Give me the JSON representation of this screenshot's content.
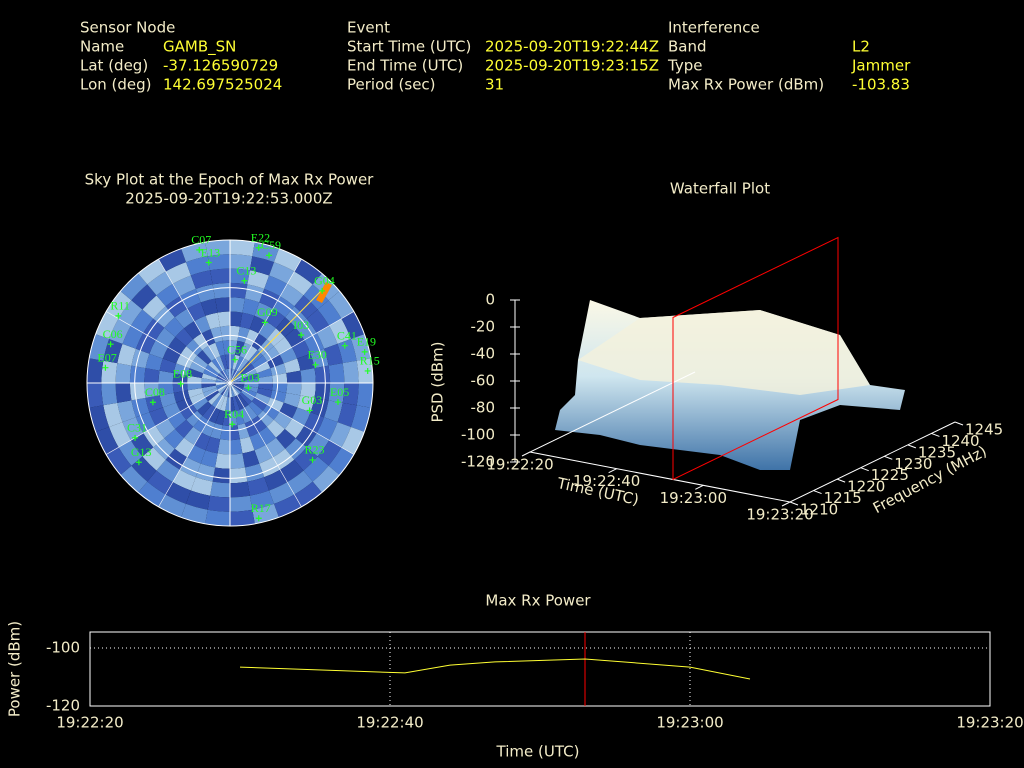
{
  "header": {
    "sections": [
      {
        "title": "Sensor Node",
        "rows": [
          [
            "Name",
            "GAMB_SN"
          ],
          [
            "Lat (deg)",
            "-37.126590729"
          ],
          [
            "Lon (deg)",
            "142.697525024"
          ]
        ]
      },
      {
        "title": "Event",
        "rows": [
          [
            "Start Time (UTC)",
            "2025-09-20T19:22:44Z"
          ],
          [
            "End Time (UTC)",
            "2025-09-20T19:23:15Z"
          ],
          [
            "Period (sec)",
            "31"
          ]
        ]
      },
      {
        "title": "Interference",
        "rows": [
          [
            "Band",
            "L2"
          ],
          [
            "Type",
            "Jammer"
          ],
          [
            "Max Rx Power (dBm)",
            "-103.83"
          ]
        ]
      }
    ]
  },
  "chart_data": [
    {
      "type": "polar-scatter",
      "title": "Sky Plot at the Epoch of Max Rx Power",
      "subtitle": "2025-09-20T19:22:53.000Z",
      "color": "#22ff22",
      "rlim": [
        0,
        90
      ],
      "rticks": [
        0,
        30,
        60
      ],
      "points": [
        {
          "label": "C07",
          "azimuth": 347,
          "elevation": 4
        },
        {
          "label": "E22",
          "azimuth": 12,
          "elevation": 3
        },
        {
          "label": "C59",
          "azimuth": 17,
          "elevation": 6
        },
        {
          "label": "E13",
          "azimuth": 350,
          "elevation": 13
        },
        {
          "label": "G04",
          "azimuth": 45,
          "elevation": 8
        },
        {
          "label": "R11",
          "azimuth": 301,
          "elevation": 8
        },
        {
          "label": "C41",
          "azimuth": 72,
          "elevation": 14
        },
        {
          "label": "E19",
          "azimuth": 77,
          "elevation": 3
        },
        {
          "label": "R15",
          "azimuth": 85,
          "elevation": 3
        },
        {
          "label": "E07",
          "azimuth": 277,
          "elevation": 11
        },
        {
          "label": "E30",
          "azimuth": 78,
          "elevation": 35
        },
        {
          "label": "C56",
          "azimuth": 12,
          "elevation": 75
        },
        {
          "label": "E03",
          "azimuth": 105,
          "elevation": 78
        },
        {
          "label": "E05",
          "azimuth": 100,
          "elevation": 21
        },
        {
          "label": "G03",
          "azimuth": 109,
          "elevation": 37
        },
        {
          "label": "R04",
          "azimuth": 177,
          "elevation": 64
        },
        {
          "label": "R17",
          "azimuth": 168,
          "elevation": 3
        },
        {
          "label": "G13",
          "azimuth": 229,
          "elevation": 14
        },
        {
          "label": "C06",
          "azimuth": 288,
          "elevation": 11
        },
        {
          "label": "C08",
          "azimuth": 256,
          "elevation": 40
        },
        {
          "label": "E08",
          "azimuth": 269,
          "elevation": 59
        },
        {
          "label": "C31",
          "azimuth": 240,
          "elevation": 21
        },
        {
          "label": "C13",
          "azimuth": 8,
          "elevation": 25
        },
        {
          "label": "R23",
          "azimuth": 133,
          "elevation": 19
        },
        {
          "label": "G09",
          "azimuth": 30,
          "elevation": 46
        },
        {
          "label": "I03",
          "azimuth": 56,
          "elevation": 36
        }
      ]
    },
    {
      "type": "waterfall3d",
      "title": "Waterfall Plot",
      "xlabel": "Time (UTC)",
      "ylabel": "Frequency (MHz)",
      "zlabel": "PSD (dBm)",
      "xlim": [
        "19:22:20",
        "19:23:20"
      ],
      "xticks": [
        "19:22:20",
        "19:22:40",
        "19:23:00",
        "19:23:20"
      ],
      "ylim": [
        1210,
        1245
      ],
      "yticks": [
        1210,
        1215,
        1220,
        1225,
        1230,
        1235,
        1240,
        1245
      ],
      "zlim": [
        -120,
        0
      ],
      "zticks": [
        0,
        -20,
        -40,
        -60,
        -80,
        -100,
        -120
      ],
      "marker_x": "19:22:53",
      "marker_color": "#ff0000"
    },
    {
      "type": "line",
      "title": "Max Rx Power",
      "xlabel": "Time (UTC)",
      "ylabel": "Power (dBm)",
      "color": "#ffff33",
      "x": [
        "19:22:30",
        "19:22:41",
        "19:22:44",
        "19:22:47",
        "19:22:53",
        "19:23:00",
        "19:23:04"
      ],
      "values": [
        -106.6,
        -108.6,
        -105.9,
        -104.8,
        -103.8,
        -106.6,
        -110.7
      ],
      "xlim": [
        "19:22:20",
        "19:23:20"
      ],
      "xticks": [
        "19:22:20",
        "19:22:40",
        "19:23:00",
        "19:23:20"
      ],
      "ylim": [
        -120,
        -94.5
      ],
      "yticks": [
        -100,
        -120
      ],
      "grid": true,
      "marker_x": "19:22:53",
      "marker_color": "#ff0000"
    }
  ]
}
